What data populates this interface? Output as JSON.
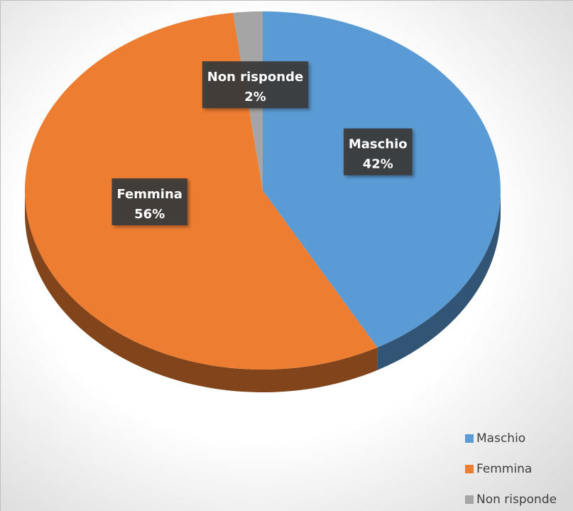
{
  "chart_data": {
    "type": "pie",
    "categories": [
      "Maschio",
      "Femmina",
      "Non risponde"
    ],
    "values": [
      42,
      56,
      2
    ],
    "value_labels": [
      "42%",
      "56%",
      "2%"
    ],
    "colors": [
      "#5b9bd5",
      "#ed7d31",
      "#a5a5a5"
    ],
    "legend": "bottom-right"
  }
}
